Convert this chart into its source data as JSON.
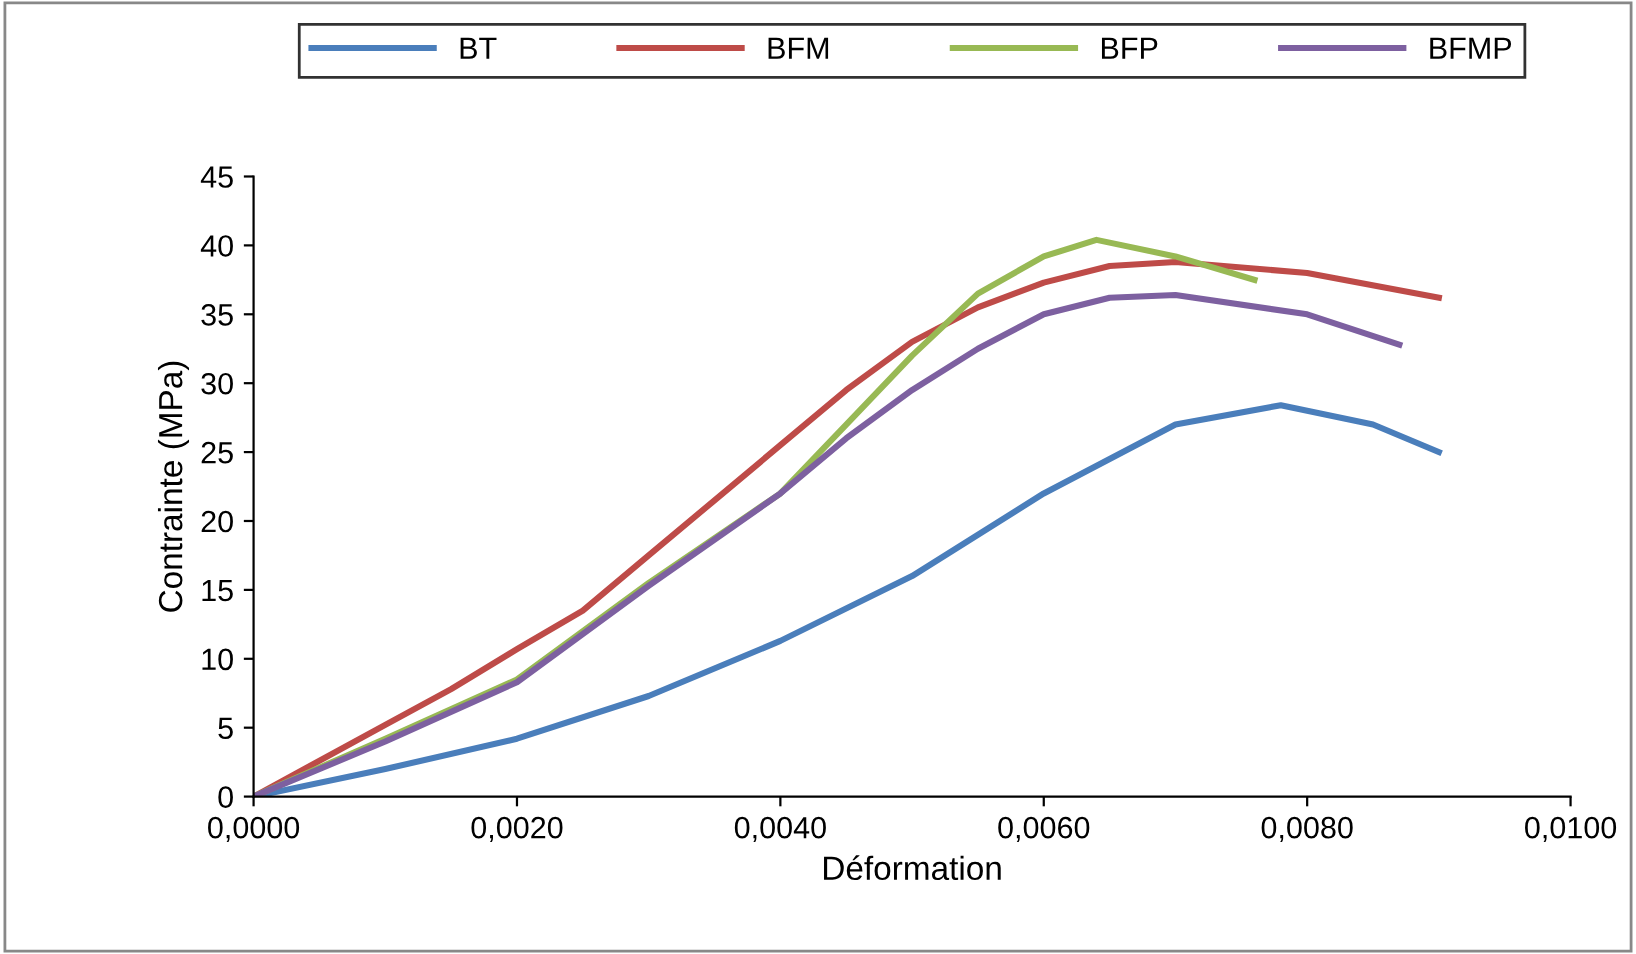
{
  "chart_data": {
    "type": "line",
    "xlabel": "Déformation",
    "ylabel": "Contrainte (MPa)",
    "xlim": [
      0,
      0.01
    ],
    "ylim": [
      0,
      45
    ],
    "xticks": [
      {
        "value": 0,
        "label": "0,0000"
      },
      {
        "value": 0.002,
        "label": "0,0020"
      },
      {
        "value": 0.004,
        "label": "0,0040"
      },
      {
        "value": 0.006,
        "label": "0,0060"
      },
      {
        "value": 0.008,
        "label": "0,0080"
      },
      {
        "value": 0.01,
        "label": "0,0100"
      }
    ],
    "yticks": [
      0,
      5,
      10,
      15,
      20,
      25,
      30,
      35,
      40,
      45
    ],
    "grid": false,
    "legend": "top",
    "marker": "none",
    "line_style": "solid",
    "series": [
      {
        "name": "BT",
        "color": "#4a7ebb",
        "x": [
          0,
          0.001,
          0.002,
          0.003,
          0.004,
          0.005,
          0.006,
          0.007,
          0.0078,
          0.0085,
          0.009
        ],
        "values": [
          0,
          2,
          4.2,
          7.3,
          11.3,
          16,
          22,
          27,
          28.4,
          27,
          25
        ]
      },
      {
        "name": "BFM",
        "color": "#be4b48",
        "x": [
          0,
          0.001,
          0.0015,
          0.002,
          0.0025,
          0.003,
          0.0035,
          0.004,
          0.0045,
          0.005,
          0.0055,
          0.006,
          0.0065,
          0.007,
          0.008,
          0.009
        ],
        "values": [
          0,
          5.2,
          7.8,
          10.7,
          13.5,
          17.5,
          21.5,
          25.5,
          29.5,
          33,
          35.5,
          37.3,
          38.5,
          38.8,
          38,
          36.2
        ]
      },
      {
        "name": "BFP",
        "color": "#98b954",
        "x": [
          0,
          0.001,
          0.002,
          0.003,
          0.004,
          0.0045,
          0.005,
          0.0055,
          0.006,
          0.0064,
          0.007,
          0.0076
        ],
        "values": [
          0,
          4.2,
          8.5,
          15.5,
          22,
          27,
          32,
          36.5,
          39.2,
          40.4,
          39.2,
          37.5
        ]
      },
      {
        "name": "BFMP",
        "color": "#7d60a0",
        "x": [
          0,
          0.001,
          0.002,
          0.003,
          0.004,
          0.0045,
          0.005,
          0.0055,
          0.006,
          0.0065,
          0.007,
          0.008,
          0.0087
        ],
        "values": [
          0,
          4,
          8.3,
          15.3,
          22,
          26,
          29.5,
          32.5,
          35,
          36.2,
          36.4,
          35,
          32.8
        ]
      }
    ]
  }
}
